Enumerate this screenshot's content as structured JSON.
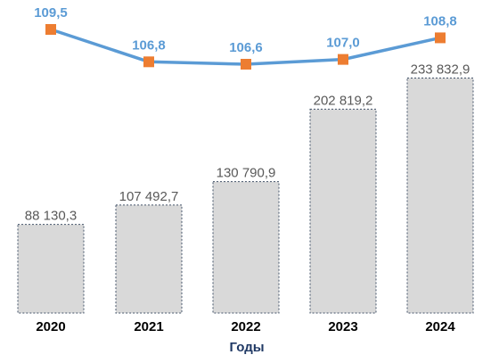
{
  "chart_data": {
    "type": "bar",
    "categories": [
      "2020",
      "2021",
      "2022",
      "2023",
      "2024"
    ],
    "series": [
      {
        "kind": "bar",
        "values": [
          88130.3,
          107492.7,
          130790.9,
          202819.2,
          233832.9
        ],
        "labels": [
          "88 130,3",
          "107 492,7",
          "130 790,9",
          "202 819,2",
          "233 832,9"
        ],
        "color": "#d9d9d9"
      },
      {
        "kind": "line",
        "values": [
          109.5,
          106.8,
          106.6,
          107.0,
          108.8
        ],
        "labels": [
          "109,5",
          "106,8",
          "106,6",
          "107,0",
          "108,8"
        ],
        "color": "#5b9bd5",
        "marker_color": "#ed7d31"
      }
    ],
    "xlabel": "Годы",
    "xlabel_color": "#1f3864",
    "grid": false,
    "legend": false
  }
}
